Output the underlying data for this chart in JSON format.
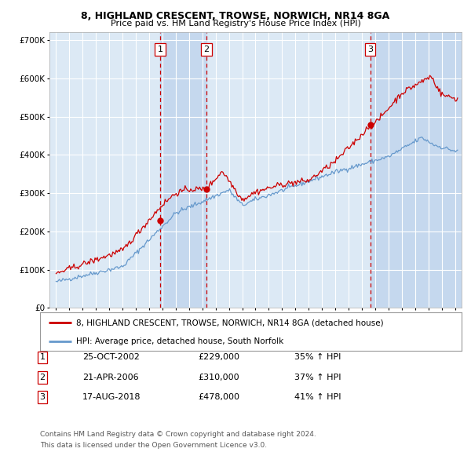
{
  "title1": "8, HIGHLAND CRESCENT, TROWSE, NORWICH, NR14 8GA",
  "title2": "Price paid vs. HM Land Registry's House Price Index (HPI)",
  "legend1": "8, HIGHLAND CRESCENT, TROWSE, NORWICH, NR14 8GA (detached house)",
  "legend2": "HPI: Average price, detached house, South Norfolk",
  "transactions": [
    {
      "num": 1,
      "date": "25-OCT-2002",
      "year": 2002.82,
      "price": 229000,
      "pct": "35%",
      "dir": "↑"
    },
    {
      "num": 2,
      "date": "21-APR-2006",
      "year": 2006.3,
      "price": 310000,
      "pct": "37%",
      "dir": "↑"
    },
    {
      "num": 3,
      "date": "17-AUG-2018",
      "year": 2018.63,
      "price": 478000,
      "pct": "41%",
      "dir": "↑"
    }
  ],
  "footer1": "Contains HM Land Registry data © Crown copyright and database right 2024.",
  "footer2": "This data is licensed under the Open Government Licence v3.0.",
  "bg_color": "#dce9f5",
  "grid_color": "#ffffff",
  "red_line_color": "#cc0000",
  "blue_line_color": "#6699cc",
  "shade_color": "#c5d8ee",
  "dashed_color": "#cc0000",
  "ylim_max": 720000,
  "ylim_min": 0,
  "xmin": 1994.5,
  "xmax": 2025.5,
  "years_start": 1995.0,
  "years_end": 2025.2
}
